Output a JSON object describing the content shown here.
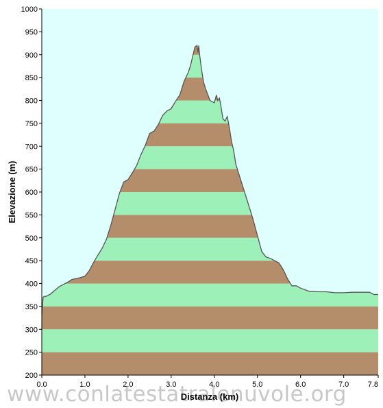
{
  "chart_data": {
    "type": "area",
    "title": "",
    "xlabel": "Distanza  (km)",
    "ylabel": "Elevazione  (m)",
    "xlim": [
      0,
      7.8
    ],
    "ylim": [
      200,
      1000
    ],
    "x_ticks": [
      "0.0",
      "1.0",
      "2.0",
      "3.0",
      "4.0",
      "5.0",
      "6.0",
      "7.0",
      "7.8"
    ],
    "x_tick_values": [
      0,
      1,
      2,
      3,
      4,
      5,
      6,
      7,
      7.8
    ],
    "y_ticks": [
      "1000",
      "950",
      "900",
      "850",
      "800",
      "750",
      "700",
      "650",
      "600",
      "550",
      "500",
      "450",
      "400",
      "350",
      "300",
      "250",
      "200"
    ],
    "y_tick_values": [
      1000,
      950,
      900,
      850,
      800,
      750,
      700,
      650,
      600,
      550,
      500,
      450,
      400,
      350,
      300,
      250,
      200
    ],
    "band_step": 50,
    "grid": false,
    "series": [
      {
        "x": [
          0,
          0.03,
          0.06,
          0.1,
          0.2,
          0.3,
          0.4,
          0.5,
          0.6,
          0.7,
          0.8,
          0.9,
          1.0,
          1.1,
          1.2,
          1.3,
          1.4,
          1.5,
          1.6,
          1.7,
          1.8,
          1.9,
          2.0,
          2.1,
          2.2,
          2.3,
          2.4,
          2.5,
          2.6,
          2.7,
          2.8,
          2.9,
          3.0,
          3.1,
          3.2,
          3.3,
          3.4,
          3.45,
          3.5,
          3.55,
          3.6,
          3.62,
          3.64,
          3.66,
          3.7,
          3.75,
          3.8,
          3.9,
          4.0,
          4.05,
          4.08,
          4.12,
          4.15,
          4.2,
          4.25,
          4.3,
          4.35,
          4.4,
          4.45,
          4.5,
          4.6,
          4.7,
          4.8,
          4.9,
          5.0,
          5.1,
          5.2,
          5.3,
          5.4,
          5.5,
          5.6,
          5.7,
          5.8,
          5.9,
          6.0,
          6.2,
          6.4,
          6.6,
          6.8,
          7.0,
          7.2,
          7.4,
          7.6,
          7.7,
          7.8
        ],
        "values": [
          330,
          370,
          372,
          372,
          377,
          385,
          393,
          398,
          403,
          409,
          411,
          413,
          416,
          428,
          446,
          462,
          477,
          497,
          527,
          562,
          597,
          622,
          627,
          642,
          658,
          682,
          702,
          728,
          733,
          747,
          767,
          777,
          782,
          798,
          812,
          842,
          862,
          877,
          897,
          917,
          920,
          905,
          920,
          900,
          870,
          840,
          825,
          800,
          795,
          812,
          800,
          805,
          790,
          760,
          755,
          765,
          740,
          710,
          690,
          660,
          630,
          600,
          570,
          540,
          505,
          470,
          458,
          455,
          450,
          445,
          430,
          410,
          395,
          395,
          390,
          383,
          382,
          382,
          380,
          380,
          381,
          381,
          381,
          376,
          376
        ]
      }
    ]
  },
  "watermark": "www.conlatestatralenuvole.org",
  "colors": {
    "plot_background": "#dfffff",
    "band_green": "#9ef0b9",
    "band_brown": "#b48d6a",
    "profile_line": "#555555",
    "axis": "#000000"
  }
}
